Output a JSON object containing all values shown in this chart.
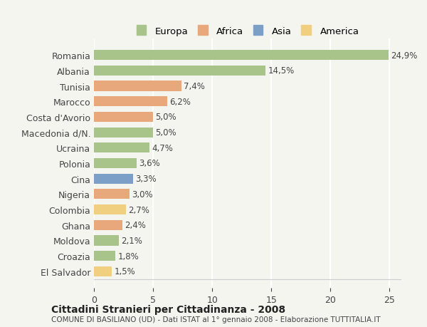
{
  "categories": [
    "Romania",
    "Albania",
    "Tunisia",
    "Marocco",
    "Costa d'Avorio",
    "Macedonia d/N.",
    "Ucraina",
    "Polonia",
    "Cina",
    "Nigeria",
    "Colombia",
    "Ghana",
    "Moldova",
    "Croazia",
    "El Salvador"
  ],
  "values": [
    24.9,
    14.5,
    7.4,
    6.2,
    5.0,
    5.0,
    4.7,
    3.6,
    3.3,
    3.0,
    2.7,
    2.4,
    2.1,
    1.8,
    1.5
  ],
  "labels": [
    "24,9%",
    "14,5%",
    "7,4%",
    "6,2%",
    "5,0%",
    "5,0%",
    "4,7%",
    "3,6%",
    "3,3%",
    "3,0%",
    "2,7%",
    "2,4%",
    "2,1%",
    "1,8%",
    "1,5%"
  ],
  "colors": [
    "#a8c48a",
    "#a8c48a",
    "#e8a87c",
    "#e8a87c",
    "#e8a87c",
    "#a8c48a",
    "#a8c48a",
    "#a8c48a",
    "#7b9fc7",
    "#e8a87c",
    "#f0d080",
    "#e8a87c",
    "#a8c48a",
    "#a8c48a",
    "#f0d080"
  ],
  "legend": {
    "Europa": "#a8c48a",
    "Africa": "#e8a87c",
    "Asia": "#7b9fc7",
    "America": "#f0d080"
  },
  "title": "Cittadini Stranieri per Cittadinanza - 2008",
  "subtitle": "COMUNE DI BASILIANO (UD) - Dati ISTAT al 1° gennaio 2008 - Elaborazione TUTTITALIA.IT",
  "xlim": [
    0,
    26
  ],
  "xticks": [
    0,
    5,
    10,
    15,
    20,
    25
  ],
  "background_color": "#f5f5f0",
  "grid_color": "#ffffff",
  "bar_height": 0.65
}
